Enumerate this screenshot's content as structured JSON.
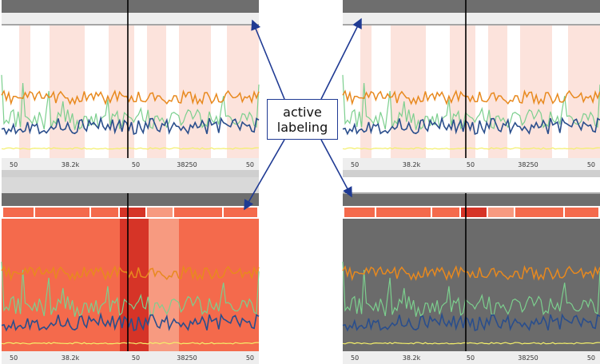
{
  "tick_labels": [
    "50",
    "38.2k",
    "50",
    "38250",
    "50"
  ],
  "callout": {
    "line1": "active",
    "line2": "labeling"
  },
  "colors": {
    "orange": "#e8891e",
    "dark_blue": "#2a4e8c",
    "light_green": "#7ccf8e",
    "yellow": "#f3ef6a",
    "pale_band": "#fce3dc",
    "red_bg": "#f46a4c",
    "dark_red_band": "#d63427",
    "gray_bg": "#6b6b6b",
    "arrow": "#1f3a93"
  },
  "panels": [
    {
      "id": "panel-top-left",
      "mode": "pale-bands"
    },
    {
      "id": "panel-top-right",
      "mode": "pale-bands"
    },
    {
      "id": "panel-bottom-left",
      "mode": "red-heatmap"
    },
    {
      "id": "panel-bottom-right",
      "mode": "gray-with-strip"
    }
  ]
}
